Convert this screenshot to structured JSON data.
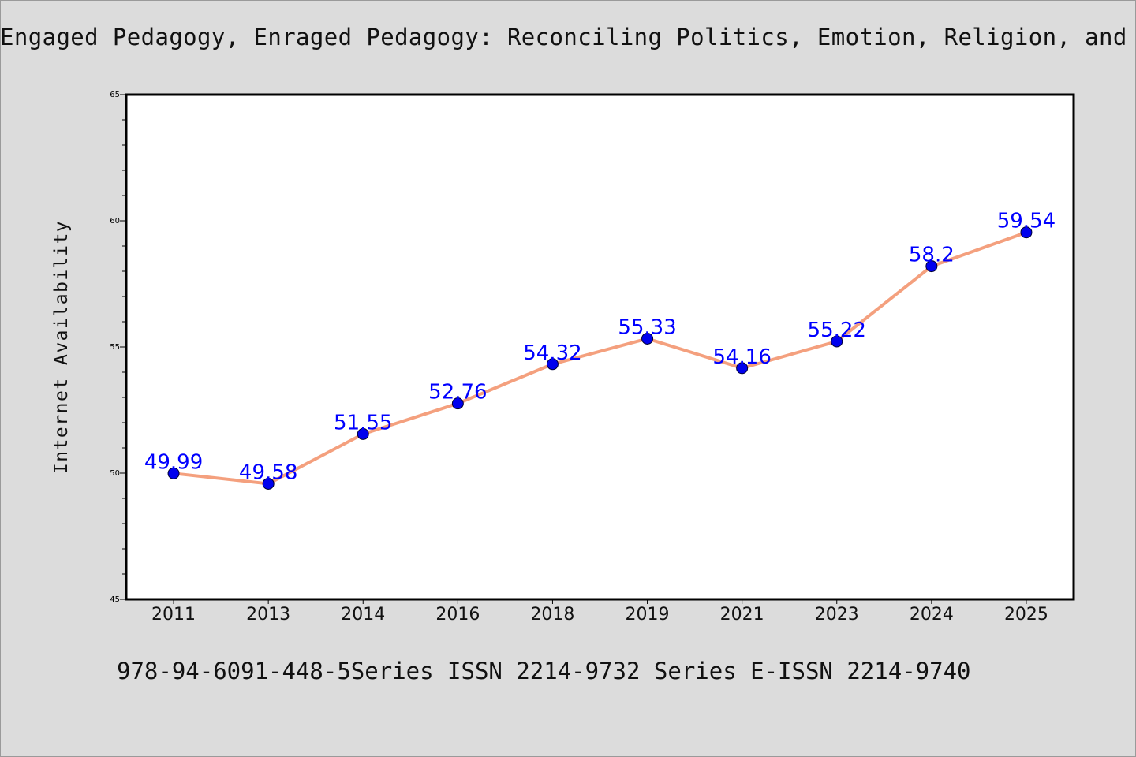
{
  "header": {
    "title": "Engaged Pedagogy, Enraged Pedagogy: Reconciling Politics, Emotion, Religion, and"
  },
  "footer": {
    "text": "978-94-6091-448-5Series ISSN 2214-9732 Series E-ISSN 2214-9740"
  },
  "chart_data": {
    "type": "line",
    "title": "Engaged Pedagogy, Enraged Pedagogy: Reconciling Politics, Emotion, Religion, and",
    "xlabel": "",
    "ylabel": "Internet Availability",
    "categories": [
      "2011",
      "2013",
      "2014",
      "2016",
      "2018",
      "2019",
      "2021",
      "2023",
      "2024",
      "2025"
    ],
    "series": [
      {
        "values": [
          49.99,
          49.58,
          51.55,
          52.76,
          54.32,
          55.33,
          54.16,
          55.22,
          58.2,
          59.54
        ],
        "labels": [
          "49.99",
          "49.58",
          "51.55",
          "52.76",
          "54.32",
          "55.33",
          "54.16",
          "55.22",
          "58.2",
          "59.54"
        ]
      }
    ],
    "ylim": [
      45,
      65
    ],
    "yticks": [
      "45",
      "50",
      "55",
      "60",
      "65"
    ],
    "grid": false,
    "legend": "none",
    "colors": {
      "line": "#f4a07e",
      "marker": "#0000ee",
      "label": "#0000ff",
      "plot_bg": "#ffffff",
      "page_bg": "#dcdcdc"
    }
  }
}
